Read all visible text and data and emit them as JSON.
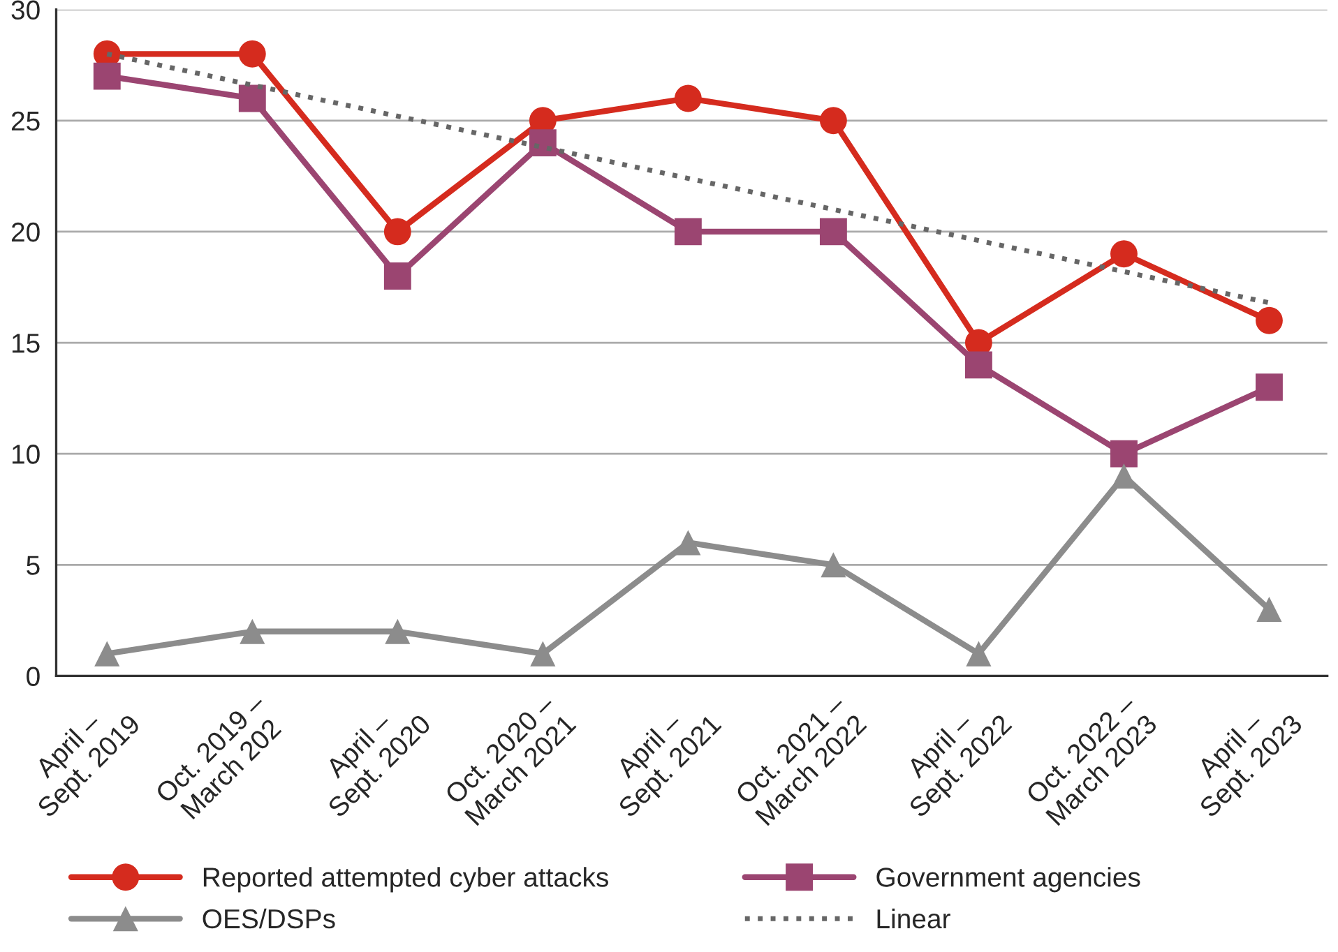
{
  "chart_data": {
    "type": "line",
    "categories": [
      "April –\nSept. 2019",
      "Oct. 2019 –\nMarch 202",
      "April –\nSept. 2020",
      "Oct. 2020 –\nMarch 2021",
      "April –\nSept. 2021",
      "Oct. 2021 –\nMarch 2022",
      "April –\nSept. 2022",
      "Oct. 2022 –\nMarch 2023",
      "April –\nSept. 2023"
    ],
    "series": [
      {
        "name": "Reported attempted cyber attacks",
        "color": "#d52b1e",
        "marker": "circle",
        "line_style": "solid",
        "values": [
          28,
          28,
          20,
          25,
          26,
          25,
          15,
          19,
          16
        ]
      },
      {
        "name": "Government agencies",
        "color": "#9b4571",
        "marker": "square",
        "line_style": "solid",
        "values": [
          27,
          26,
          18,
          24,
          20,
          20,
          14,
          10,
          13
        ]
      },
      {
        "name": "OES/DSPs",
        "color": "#8c8c8c",
        "marker": "triangle",
        "line_style": "solid",
        "values": [
          1,
          2,
          2,
          1,
          6,
          5,
          1,
          9,
          3
        ]
      },
      {
        "name": "Linear",
        "color": "#666666",
        "marker": "none",
        "line_style": "dotted",
        "values": [
          28,
          26.6,
          25.2,
          23.8,
          22.4,
          21.0,
          19.6,
          18.2,
          16.8
        ]
      }
    ],
    "ylim": [
      0,
      30
    ],
    "yticks": [
      0,
      5,
      10,
      15,
      20,
      25,
      30
    ],
    "grid": "y",
    "legend": "bottom"
  }
}
